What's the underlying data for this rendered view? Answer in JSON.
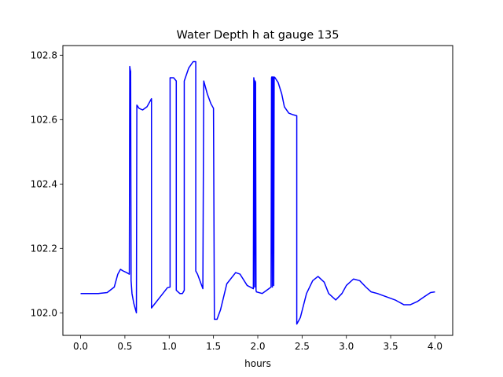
{
  "chart_data": {
    "type": "line",
    "title": "Water Depth h at gauge 135",
    "xlabel": "hours",
    "ylabel": "",
    "xlim": [
      -0.2,
      4.2
    ],
    "ylim": [
      101.93,
      102.83
    ],
    "x_ticks": [
      0.0,
      0.5,
      1.0,
      1.5,
      2.0,
      2.5,
      3.0,
      3.5,
      4.0
    ],
    "x_tick_labels": [
      "0.0",
      "0.5",
      "1.0",
      "1.5",
      "2.0",
      "2.5",
      "3.0",
      "3.5",
      "4.0"
    ],
    "y_ticks": [
      102.0,
      102.2,
      102.4,
      102.6,
      102.8
    ],
    "y_tick_labels": [
      "102.0",
      "102.2",
      "102.4",
      "102.6",
      "102.8"
    ],
    "grid": false,
    "series": [
      {
        "color": "#0000ff",
        "x": [
          0.0,
          0.2,
          0.3,
          0.38,
          0.42,
          0.45,
          0.48,
          0.52,
          0.55,
          0.555,
          0.56,
          0.565,
          0.57,
          0.575,
          0.58,
          0.6,
          0.63,
          0.635,
          0.66,
          0.7,
          0.75,
          0.8,
          0.8,
          0.9,
          0.98,
          1.01,
          1.01,
          1.05,
          1.08,
          1.08,
          1.12,
          1.15,
          1.17,
          1.17,
          1.22,
          1.27,
          1.3,
          1.3,
          1.32,
          1.36,
          1.38,
          1.39,
          1.43,
          1.47,
          1.5,
          1.51,
          1.54,
          1.58,
          1.65,
          1.75,
          1.8,
          1.88,
          1.95,
          1.955,
          1.96,
          1.965,
          1.97,
          1.975,
          1.98,
          1.985,
          2.05,
          2.1,
          2.15,
          2.155,
          2.16,
          2.165,
          2.17,
          2.175,
          2.18,
          2.185,
          2.19,
          2.23,
          2.27,
          2.3,
          2.35,
          2.4,
          2.44,
          2.44,
          2.48,
          2.55,
          2.62,
          2.68,
          2.75,
          2.8,
          2.88,
          2.95,
          3.0,
          3.08,
          3.15,
          3.22,
          3.28,
          3.35,
          3.45,
          3.55,
          3.65,
          3.72,
          3.8,
          3.88,
          3.95,
          4.0
        ],
        "y": [
          102.06,
          102.06,
          102.063,
          102.08,
          102.12,
          102.135,
          102.13,
          102.125,
          102.12,
          102.765,
          102.755,
          102.75,
          102.1,
          102.08,
          102.06,
          102.03,
          102.0,
          102.645,
          102.635,
          102.63,
          102.64,
          102.665,
          102.015,
          102.05,
          102.078,
          102.08,
          102.73,
          102.73,
          102.72,
          102.07,
          102.06,
          102.06,
          102.07,
          102.72,
          102.76,
          102.78,
          102.78,
          102.13,
          102.12,
          102.09,
          102.075,
          102.72,
          102.68,
          102.65,
          102.635,
          101.98,
          101.98,
          102.01,
          102.09,
          102.125,
          102.12,
          102.085,
          102.075,
          102.73,
          102.72,
          102.08,
          102.72,
          102.715,
          102.07,
          102.065,
          102.06,
          102.07,
          102.08,
          102.73,
          102.733,
          102.08,
          102.73,
          102.733,
          102.085,
          102.73,
          102.732,
          102.715,
          102.68,
          102.64,
          102.62,
          102.615,
          102.612,
          101.965,
          101.985,
          102.06,
          102.1,
          102.113,
          102.095,
          102.06,
          102.04,
          102.06,
          102.085,
          102.105,
          102.1,
          102.08,
          102.065,
          102.06,
          102.05,
          102.04,
          102.025,
          102.025,
          102.035,
          102.05,
          102.063,
          102.065
        ]
      }
    ]
  }
}
